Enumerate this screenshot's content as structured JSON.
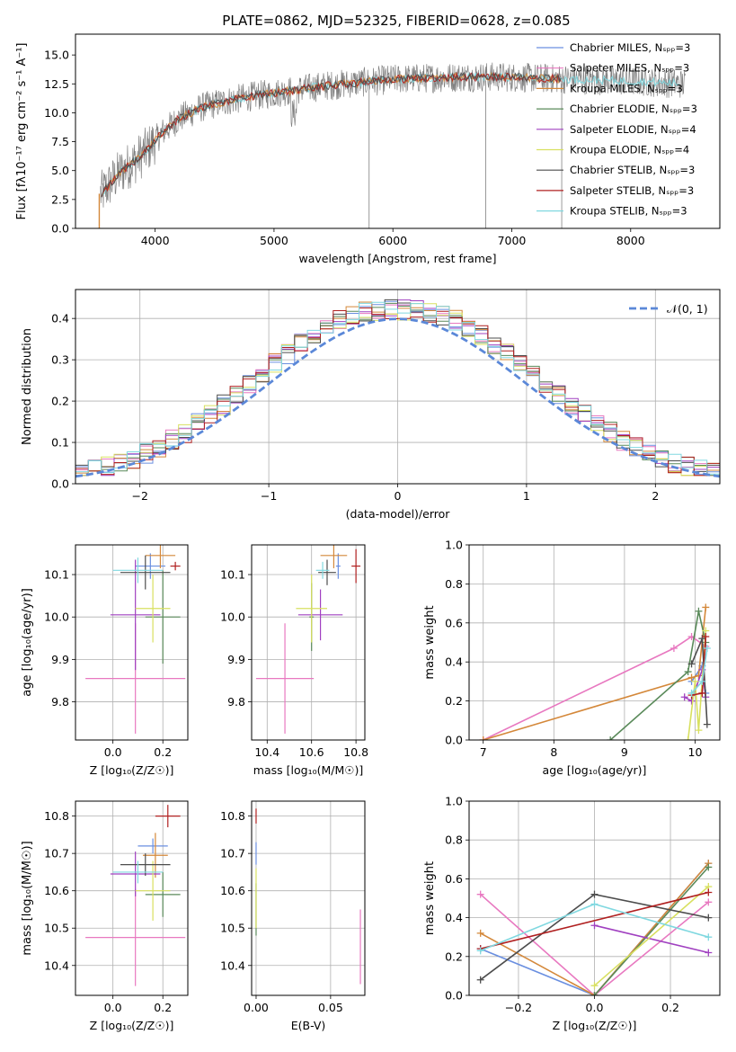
{
  "title": "PLATE=0862, MJD=52325, FIBERID=0628, z=0.085",
  "colors": [
    "#6a8fe0",
    "#e878c0",
    "#d4883a",
    "#5a8a5a",
    "#a040c0",
    "#d8e060",
    "#4d4d4d",
    "#b02020",
    "#80d8e0"
  ],
  "chart_data": [
    {
      "id": "spectrum",
      "type": "line",
      "xlabel": "wavelength [Angstrom, rest frame]",
      "ylabel": "Flux [fλ10⁻¹⁷ erg cm⁻² s⁻¹ A⁻¹]",
      "xlim": [
        3330,
        8750
      ],
      "ylim": [
        0,
        16.8
      ],
      "xticks": [
        4000,
        5000,
        6000,
        7000,
        8000
      ],
      "yticks": [
        0.0,
        2.5,
        5.0,
        7.5,
        10.0,
        12.5,
        15.0
      ],
      "xtick_labels": [
        "4000",
        "5000",
        "6000",
        "7000",
        "8000"
      ],
      "ytick_labels": [
        "0.0",
        "2.5",
        "5.0",
        "7.5",
        "10.0",
        "12.5",
        "15.0"
      ],
      "grid": false,
      "legend_position": "right",
      "legend": [
        "Chabrier MILES, Nₛₚₚ=3",
        "Salpeter MILES, Nₛₚₚ=3",
        "Kroupa MILES, Nₛₚₚ=3",
        "Chabrier ELODIE, Nₛₚₚ=3",
        "Salpeter ELODIE, Nₛₚₚ=4",
        "Kroupa ELODIE, Nₛₚₚ=4",
        "Chabrier STELIB, Nₛₚₚ=3",
        "Salpeter STELIB, Nₛₚₚ=3",
        "Kroupa STELIB, Nₛₚₚ=3"
      ],
      "continuum": {
        "x": [
          3550,
          3700,
          3850,
          3950,
          4050,
          4200,
          4400,
          4600,
          4800,
          5000,
          5200,
          5400,
          5600,
          5800,
          6000,
          6300,
          6600,
          6900,
          7200,
          7500,
          7800,
          8100,
          8450
        ],
        "y": [
          3.0,
          4.8,
          6.0,
          7.0,
          8.2,
          9.5,
          10.5,
          11.0,
          11.4,
          11.7,
          12.0,
          12.3,
          12.5,
          12.7,
          12.9,
          13.0,
          13.1,
          13.1,
          13.0,
          12.9,
          12.8,
          12.7,
          12.5
        ]
      }
    },
    {
      "id": "residuals",
      "type": "line",
      "xlabel": "(data-model)/error",
      "ylabel": "Normed distribution",
      "xlim": [
        -2.5,
        2.5
      ],
      "ylim": [
        0,
        0.47
      ],
      "xticks": [
        -2,
        -1,
        0,
        1,
        2
      ],
      "yticks": [
        0.0,
        0.1,
        0.2,
        0.3,
        0.4
      ],
      "xtick_labels": [
        "−2",
        "−1",
        "0",
        "1",
        "2"
      ],
      "ytick_labels": [
        "0.0",
        "0.1",
        "0.2",
        "0.3",
        "0.4"
      ],
      "grid": true,
      "legend": [
        "𝒩(0, 1)"
      ],
      "legend_position": "top-right",
      "bins": {
        "start": -2.5,
        "width": 0.1
      }
    },
    {
      "id": "age-vs-Z",
      "type": "scatter",
      "xlabel": "Z [log₁₀(Z/Z☉)]",
      "ylabel": "age  [log₁₀(age/yr)]",
      "xlim": [
        -0.15,
        0.3
      ],
      "ylim": [
        9.71,
        10.17
      ],
      "xticks": [
        0.0,
        0.2
      ],
      "yticks": [
        9.8,
        9.9,
        10.0,
        10.1
      ],
      "xtick_labels": [
        "0.0",
        "0.2"
      ],
      "ytick_labels": [
        "9.8",
        "9.9",
        "10.0",
        "10.1"
      ],
      "grid": true,
      "points": [
        {
          "c": 0,
          "x": 0.15,
          "xerr": 0.06,
          "y": 10.12,
          "yerr": 0.03
        },
        {
          "c": 1,
          "x": 0.09,
          "xerr": 0.2,
          "y": 9.855,
          "yerr": 0.13
        },
        {
          "c": 2,
          "x": 0.19,
          "xerr": 0.06,
          "y": 10.145,
          "yerr": 0.03
        },
        {
          "c": 3,
          "x": 0.2,
          "xerr": 0.07,
          "y": 10.0,
          "yerr": 0.11
        },
        {
          "c": 4,
          "x": 0.09,
          "xerr": 0.1,
          "y": 10.005,
          "yerr": 0.13
        },
        {
          "c": 5,
          "x": 0.16,
          "xerr": 0.07,
          "y": 10.02,
          "yerr": 0.08
        },
        {
          "c": 6,
          "x": 0.13,
          "xerr": 0.1,
          "y": 10.105,
          "yerr": 0.04
        },
        {
          "c": 7,
          "x": 0.25,
          "xerr": 0.02,
          "y": 10.12,
          "yerr": 0.01
        },
        {
          "c": 8,
          "x": 0.1,
          "xerr": 0.1,
          "y": 10.11,
          "yerr": 0.03
        }
      ]
    },
    {
      "id": "age-vs-mass",
      "type": "scatter",
      "xlabel": "mass [log₁₀(M/M☉)]",
      "ylabel": "",
      "xlim": [
        10.33,
        10.84
      ],
      "ylim": [
        9.71,
        10.17
      ],
      "xticks": [
        10.4,
        10.6,
        10.8
      ],
      "yticks": [
        9.8,
        9.9,
        10.0,
        10.1
      ],
      "xtick_labels": [
        "10.4",
        "10.6",
        "10.8"
      ],
      "ytick_labels": [
        "9.8",
        "9.9",
        "10.0",
        "10.1"
      ],
      "grid": true,
      "points": [
        {
          "c": 0,
          "x": 10.72,
          "xerr": 0.01,
          "y": 10.12,
          "yerr": 0.03
        },
        {
          "c": 1,
          "x": 10.48,
          "xerr": 0.13,
          "y": 9.855,
          "yerr": 0.13
        },
        {
          "c": 2,
          "x": 10.7,
          "xerr": 0.06,
          "y": 10.145,
          "yerr": 0.03
        },
        {
          "c": 3,
          "x": 10.6,
          "xerr": 0.01,
          "y": 10.0,
          "yerr": 0.08
        },
        {
          "c": 4,
          "x": 10.64,
          "xerr": 0.1,
          "y": 10.005,
          "yerr": 0.06
        },
        {
          "c": 5,
          "x": 10.6,
          "xerr": 0.07,
          "y": 10.02,
          "yerr": 0.08
        },
        {
          "c": 6,
          "x": 10.67,
          "xerr": 0.04,
          "y": 10.105,
          "yerr": 0.03
        },
        {
          "c": 7,
          "x": 10.8,
          "xerr": 0.02,
          "y": 10.12,
          "yerr": 0.04
        },
        {
          "c": 8,
          "x": 10.65,
          "xerr": 0.03,
          "y": 10.11,
          "yerr": 0.02
        }
      ]
    },
    {
      "id": "massweight-vs-age",
      "type": "line",
      "xlabel": "age  [log₁₀(age/yr)]",
      "ylabel": "mass weight",
      "xlim": [
        6.8,
        10.35
      ],
      "ylim": [
        0,
        1
      ],
      "xticks": [
        7,
        8,
        9,
        10
      ],
      "yticks": [
        0.0,
        0.2,
        0.4,
        0.6,
        0.8,
        1.0
      ],
      "xtick_labels": [
        "7",
        "8",
        "9",
        "10"
      ],
      "ytick_labels": [
        "0.0",
        "0.2",
        "0.4",
        "0.6",
        "0.8",
        "1.0"
      ],
      "grid": true,
      "series": [
        {
          "c": 0,
          "x": [
            9.95,
            10.1,
            10.15
          ],
          "y": [
            0.3,
            0.38,
            0.24
          ]
        },
        {
          "c": 1,
          "x": [
            7.0,
            9.7,
            9.95,
            10.15
          ],
          "y": [
            0.0,
            0.47,
            0.53,
            0.48
          ]
        },
        {
          "c": 2,
          "x": [
            7.0,
            9.95,
            10.05,
            10.15
          ],
          "y": [
            0.0,
            0.32,
            0.33,
            0.68
          ]
        },
        {
          "c": 3,
          "x": [
            8.8,
            9.9,
            10.05,
            10.15
          ],
          "y": [
            0.0,
            0.35,
            0.66,
            0.5
          ]
        },
        {
          "c": 4,
          "x": [
            9.85,
            9.95,
            10.1,
            10.15
          ],
          "y": [
            0.22,
            0.2,
            0.36,
            0.22
          ]
        },
        {
          "c": 5,
          "x": [
            9.9,
            10.0,
            10.05,
            10.15
          ],
          "y": [
            0.0,
            0.3,
            0.05,
            0.56
          ]
        },
        {
          "c": 6,
          "x": [
            9.95,
            10.1,
            10.17
          ],
          "y": [
            0.39,
            0.52,
            0.08
          ]
        },
        {
          "c": 7,
          "x": [
            9.95,
            10.1,
            10.15
          ],
          "y": [
            0.23,
            0.24,
            0.53
          ]
        },
        {
          "c": 8,
          "x": [
            9.95,
            10.1,
            10.17
          ],
          "y": [
            0.24,
            0.3,
            0.47
          ]
        }
      ]
    },
    {
      "id": "mass-vs-Z",
      "type": "scatter",
      "xlabel": "Z [log₁₀(Z/Z☉)]",
      "ylabel": "mass [log₁₀(M/M☉)]",
      "xlim": [
        -0.15,
        0.3
      ],
      "ylim": [
        10.32,
        10.84
      ],
      "xticks": [
        0.0,
        0.2
      ],
      "yticks": [
        10.4,
        10.5,
        10.6,
        10.7,
        10.8
      ],
      "xtick_labels": [
        "0.0",
        "0.2"
      ],
      "ytick_labels": [
        "10.4",
        "10.5",
        "10.6",
        "10.7",
        "10.8"
      ],
      "grid": true,
      "points": [
        {
          "c": 0,
          "x": 0.16,
          "xerr": 0.06,
          "y": 10.72,
          "yerr": 0.02
        },
        {
          "c": 1,
          "x": 0.09,
          "xerr": 0.2,
          "y": 10.475,
          "yerr": 0.13
        },
        {
          "c": 2,
          "x": 0.17,
          "xerr": 0.05,
          "y": 10.695,
          "yerr": 0.06
        },
        {
          "c": 3,
          "x": 0.2,
          "xerr": 0.07,
          "y": 10.59,
          "yerr": 0.06
        },
        {
          "c": 4,
          "x": 0.09,
          "xerr": 0.1,
          "y": 10.645,
          "yerr": 0.06
        },
        {
          "c": 5,
          "x": 0.16,
          "xerr": 0.07,
          "y": 10.6,
          "yerr": 0.08
        },
        {
          "c": 6,
          "x": 0.13,
          "xerr": 0.1,
          "y": 10.67,
          "yerr": 0.03
        },
        {
          "c": 7,
          "x": 0.22,
          "xerr": 0.05,
          "y": 10.8,
          "yerr": 0.03
        },
        {
          "c": 8,
          "x": 0.1,
          "xerr": 0.1,
          "y": 10.65,
          "yerr": 0.03
        }
      ]
    },
    {
      "id": "mass-vs-EBV",
      "type": "scatter",
      "xlabel": "E(B-V)",
      "ylabel": "",
      "xlim": [
        -0.003,
        0.073
      ],
      "ylim": [
        10.32,
        10.84
      ],
      "xticks": [
        0.0,
        0.05
      ],
      "yticks": [
        10.4,
        10.5,
        10.6,
        10.7,
        10.8
      ],
      "xtick_labels": [
        "0.00",
        "0.05"
      ],
      "ytick_labels": [
        "10.4",
        "10.5",
        "10.6",
        "10.7",
        "10.8"
      ],
      "grid": true,
      "points": [
        {
          "c": 0,
          "x": 0.0,
          "xerr": 0,
          "y": 10.7,
          "yerr": 0.03
        },
        {
          "c": 1,
          "x": 0.07,
          "xerr": 0,
          "y": 10.45,
          "yerr": 0.1
        },
        {
          "c": 3,
          "x": 0.0,
          "xerr": 0,
          "y": 10.55,
          "yerr": 0.07
        },
        {
          "c": 5,
          "x": 0.0,
          "xerr": 0,
          "y": 10.58,
          "yerr": 0.08
        },
        {
          "c": 7,
          "x": 0.0,
          "xerr": 0,
          "y": 10.8,
          "yerr": 0.02
        }
      ]
    },
    {
      "id": "massweight-vs-Z",
      "type": "line",
      "xlabel": "Z [log₁₀(Z/Z☉)]",
      "ylabel": "mass weight",
      "xlim": [
        -0.33,
        0.33
      ],
      "ylim": [
        0,
        1
      ],
      "xticks": [
        -0.2,
        0.0,
        0.2
      ],
      "yticks": [
        0.0,
        0.2,
        0.4,
        0.6,
        0.8,
        1.0
      ],
      "xtick_labels": [
        "−0.2",
        "0.0",
        "0.2"
      ],
      "ytick_labels": [
        "0.0",
        "0.2",
        "0.4",
        "0.6",
        "0.8",
        "1.0"
      ],
      "grid": true,
      "series": [
        {
          "c": 0,
          "x": [
            -0.3,
            0.0,
            0.3
          ],
          "y": [
            0.24,
            0.0,
            0.68
          ]
        },
        {
          "c": 1,
          "x": [
            -0.3,
            0.0,
            0.3
          ],
          "y": [
            0.52,
            0.0,
            0.48
          ]
        },
        {
          "c": 2,
          "x": [
            -0.3,
            0.0,
            0.3
          ],
          "y": [
            0.32,
            0.0,
            0.68
          ]
        },
        {
          "c": 3,
          "x": [
            0.0,
            0.3
          ],
          "y": [
            0.0,
            0.66
          ]
        },
        {
          "c": 4,
          "x": [
            0.0,
            0.3
          ],
          "y": [
            0.36,
            0.22
          ]
        },
        {
          "c": 5,
          "x": [
            0.0,
            0.3
          ],
          "y": [
            0.05,
            0.56
          ]
        },
        {
          "c": 6,
          "x": [
            -0.3,
            0.0,
            0.3
          ],
          "y": [
            0.08,
            0.52,
            0.4
          ]
        },
        {
          "c": 7,
          "x": [
            -0.3,
            0.3
          ],
          "y": [
            0.24,
            0.53
          ]
        },
        {
          "c": 8,
          "x": [
            -0.3,
            0.0,
            0.3
          ],
          "y": [
            0.23,
            0.47,
            0.3
          ]
        }
      ]
    }
  ]
}
